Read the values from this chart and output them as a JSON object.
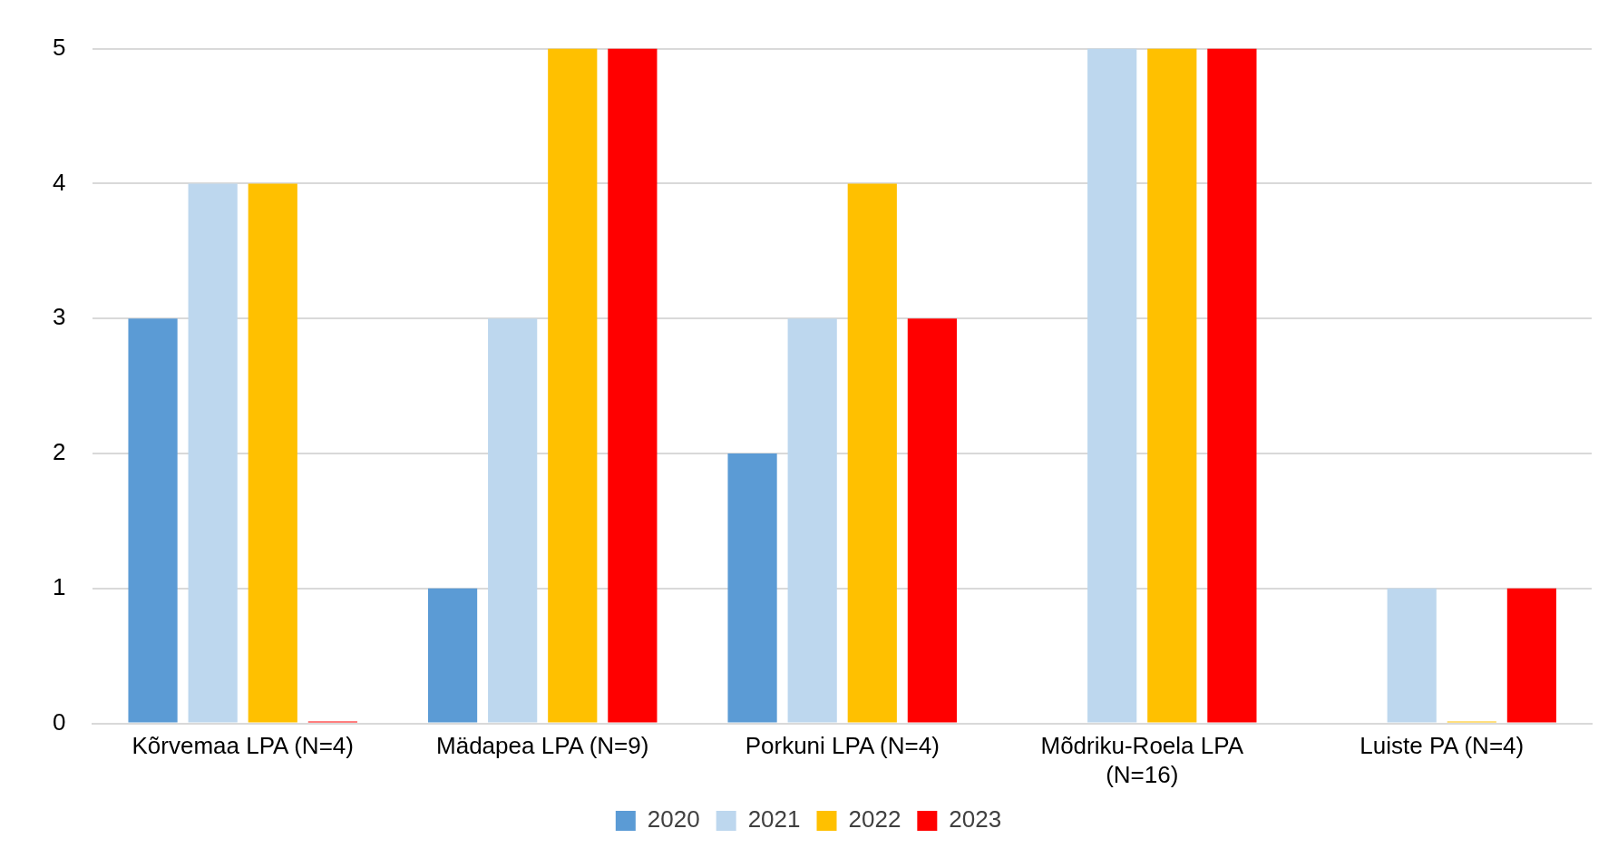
{
  "chart_data": {
    "type": "bar",
    "categories": [
      "Kõrvemaa LPA (N=4)",
      "Mädapea LPA (N=9)",
      "Porkuni LPA (N=4)",
      "Mõdriku-Roela LPA (N=16)",
      "Luiste PA (N=4)"
    ],
    "series": [
      {
        "name": "2020",
        "color": "#5b9bd5",
        "values": [
          3,
          1,
          2,
          null,
          null
        ]
      },
      {
        "name": "2021",
        "color": "#bdd7ee",
        "values": [
          4,
          3,
          3,
          5,
          1
        ]
      },
      {
        "name": "2022",
        "color": "#ffc000",
        "values": [
          4,
          5,
          4,
          5,
          0
        ]
      },
      {
        "name": "2023",
        "color": "#ff0000",
        "values": [
          0,
          5,
          3,
          5,
          1
        ]
      }
    ],
    "ylim": [
      0,
      5
    ],
    "yticks": [
      0,
      1,
      2,
      3,
      4,
      5
    ],
    "grid": "y",
    "legend": "bottom"
  }
}
